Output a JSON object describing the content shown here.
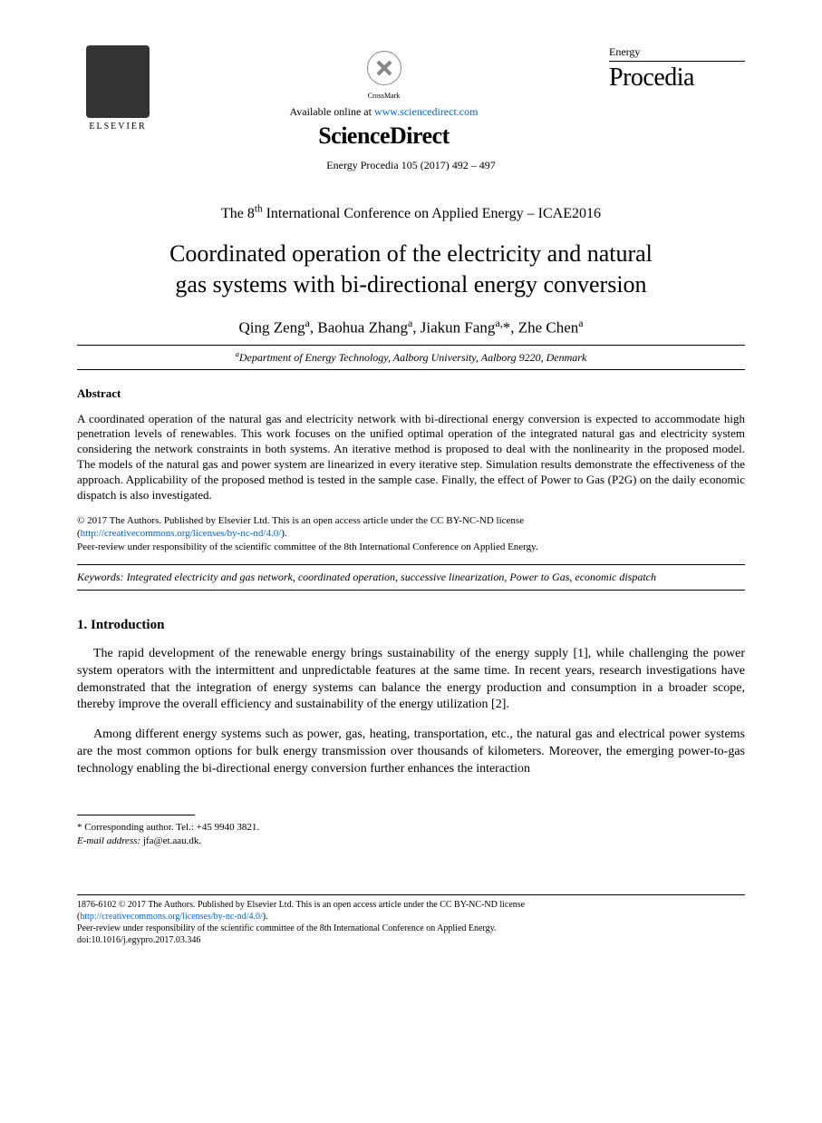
{
  "header": {
    "elsevier_label": "ELSEVIER",
    "crossmark_label": "CrossMark",
    "available_text": "Available online at ",
    "available_url": "www.sciencedirect.com",
    "sd_bold": "ScienceDirect",
    "journal_energy": "Energy",
    "journal_procedia": "Procedia",
    "citation": "Energy Procedia 105 (2017) 492 – 497"
  },
  "conference": "The 8th International Conference on Applied Energy – ICAE2016",
  "title_line1": "Coordinated operation of the electricity and natural",
  "title_line2": "gas systems with bi-directional energy conversion",
  "authors_html": "Qing Zeng<sup>a</sup>, Baohua Zhang<sup>a</sup>, Jiakun Fang<sup>a,</sup>*, Zhe Chen<sup>a</sup>",
  "affiliation": "aDepartment of Energy Technology, Aalborg University, Aalborg 9220, Denmark",
  "abstract_heading": "Abstract",
  "abstract_text": "A coordinated operation of the natural gas and electricity network with bi-directional energy conversion is expected to accommodate high penetration levels of renewables. This work focuses on the unified optimal operation of the integrated natural gas and electricity system considering the network constraints in both systems. An iterative method is proposed to deal with the nonlinearity in the proposed model. The models of the natural gas and power system are linearized in every iterative step. Simulation results demonstrate the effectiveness of the approach. Applicability of the proposed method is tested in the sample case. Finally, the effect of Power to Gas (P2G) on the daily economic dispatch is also investigated.",
  "copyright_line1": "© 2017 The Authors. Published by Elsevier Ltd. This is an open access article under the CC BY-NC-ND license",
  "copyright_url_text": "http://creativecommons.org/licenses/by-nc-nd/4.0/",
  "copyright_line2": "Peer-review under responsibility of the scientific committee of the 8th International Conference on Applied Energy.",
  "keywords_label": "Keywords:",
  "keywords_text": " Integrated electricity and gas network,  coordinated operation, successive linearization, Power to Gas, economic dispatch",
  "section1_heading": "1. Introduction",
  "para1": "The rapid development of the renewable energy brings sustainability of the energy supply [1], while challenging the power system operators with the intermittent and unpredictable features at the same time. In recent years, research investigations have demonstrated that the integration of energy systems can balance the energy production and consumption in a broader scope, thereby improve the overall efficiency and sustainability of the energy utilization [2].",
  "para2": "Among different energy systems such as power, gas, heating, transportation, etc., the natural gas and electrical power systems are the most common options for bulk energy transmission over thousands of kilometers. Moreover, the emerging power-to-gas technology enabling the bi-directional energy conversion further enhances the interaction",
  "footnote_corr": "* Corresponding author. Tel.: +45 9940 3821.",
  "footnote_email_label": "E-mail address:",
  "footnote_email": " jfa@et.aau.dk.",
  "footer_line1": "1876-6102 © 2017 The Authors. Published by Elsevier Ltd. This is an open access article under the CC BY-NC-ND license",
  "footer_url_text": "http://creativecommons.org/licenses/by-nc-nd/4.0/",
  "footer_line2": "Peer-review under responsibility of the scientific committee of the 8th International Conference on Applied Energy.",
  "footer_doi": "doi:10.1016/j.egypro.2017.03.346",
  "colors": {
    "link": "#0066cc",
    "text": "#000000",
    "background": "#ffffff"
  }
}
